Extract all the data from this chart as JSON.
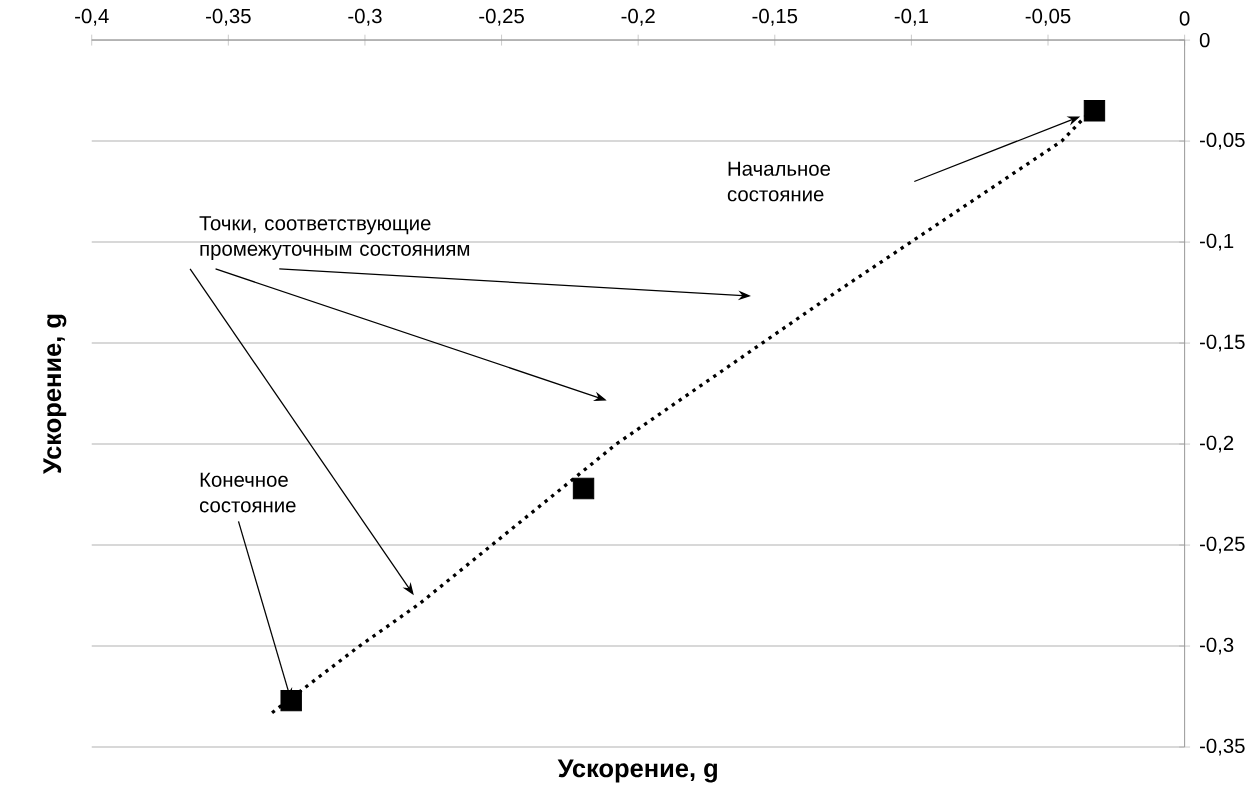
{
  "chart_data": {
    "type": "scatter",
    "xlabel": "Ускорение, g",
    "ylabel": "Ускорение, g",
    "series": [
      {
        "type": "line",
        "color": "#000000",
        "line_style": "dotted",
        "marker": "none",
        "x": [
          -0.334,
          -0.302,
          -0.28,
          -0.208,
          -0.13,
          -0.045,
          -0.035
        ],
        "values": [
          -0.333,
          -0.3,
          -0.279,
          -0.2,
          -0.127,
          -0.05,
          -0.036
        ]
      },
      {
        "color": "#000000",
        "marker": "square",
        "x": [
          -0.033,
          -0.22,
          -0.327
        ],
        "values": [
          -0.035,
          -0.222,
          -0.327
        ]
      }
    ],
    "xlim": [
      -0.4,
      0
    ],
    "ylim": [
      -0.35,
      0
    ],
    "xticks": [
      {
        "value": -0.4,
        "label": "-0,4"
      },
      {
        "value": -0.35,
        "label": "-0,35"
      },
      {
        "value": -0.3,
        "label": "-0,3"
      },
      {
        "value": -0.25,
        "label": "-0,25"
      },
      {
        "value": -0.2,
        "label": "-0,2"
      },
      {
        "value": -0.15,
        "label": "-0,15"
      },
      {
        "value": -0.1,
        "label": "-0,1"
      },
      {
        "value": -0.05,
        "label": "-0,05"
      },
      0
    ],
    "yticks": [
      {
        "value": -0.35,
        "label": "-0,35"
      },
      {
        "value": -0.3,
        "label": "-0,3"
      },
      {
        "value": -0.25,
        "label": "-0,25"
      },
      {
        "value": -0.2,
        "label": "-0,2"
      },
      {
        "value": -0.15,
        "label": "-0,15"
      },
      {
        "value": -0.1,
        "label": "-0,1"
      },
      {
        "value": -0.05,
        "label": "-0,05"
      },
      0
    ],
    "grid": "y",
    "annotations": [
      "Начальное состояние",
      "Точки, соответствующие промежуточным состояниям",
      {
        "text": "Конечное состояние",
        "x": -0.327,
        "y": -0.327
      }
    ]
  }
}
